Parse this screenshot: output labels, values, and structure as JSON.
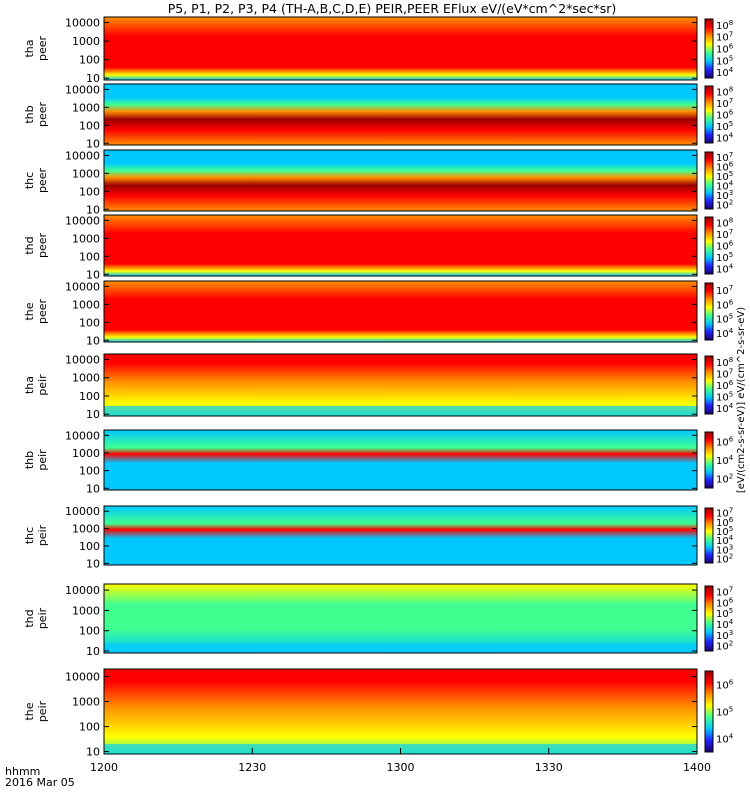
{
  "chart_data": {
    "type": "heatmap",
    "title": "P5, P1, P2, P3, P4 (TH-A,B,C,D,E) PEIR,PEER EFlux eV/(eV*cm^2*sec*sr)",
    "x_axis": {
      "label_line1": "hhmm",
      "label_line2": "2016 Mar 05",
      "ticks": [
        "1200",
        "1230",
        "1300",
        "1330",
        "1400"
      ],
      "range": [
        "12:00",
        "14:00"
      ]
    },
    "y_ticks": [
      "10000",
      "1000",
      "100",
      "10"
    ],
    "y_scale": "log",
    "y_range": [
      8,
      20000
    ],
    "panels": [
      {
        "probe": "tha",
        "species": "peer",
        "cbar_ticks": [
          "10^4",
          "10^5",
          "10^6",
          "10^7",
          "10^8"
        ],
        "pattern": "electron"
      },
      {
        "probe": "thb",
        "species": "peer",
        "cbar_ticks": [
          "10^4",
          "10^5",
          "10^6",
          "10^7",
          "10^8"
        ],
        "pattern": "electron_bands"
      },
      {
        "probe": "thc",
        "species": "peer",
        "cbar_ticks": [
          "10^2",
          "10^3",
          "10^4",
          "10^5",
          "10^6",
          "10^7"
        ],
        "pattern": "electron_bands"
      },
      {
        "probe": "thd",
        "species": "peer",
        "cbar_ticks": [
          "10^4",
          "10^5",
          "10^6",
          "10^7",
          "10^8"
        ],
        "pattern": "electron"
      },
      {
        "probe": "the",
        "species": "peer",
        "cbar_ticks": [
          "10^4",
          "10^5",
          "10^6",
          "10^7"
        ],
        "pattern": "electron"
      },
      {
        "probe": "tha",
        "species": "peir",
        "cbar_ticks": [
          "10^4",
          "10^5",
          "10^6",
          "10^7",
          "10^8"
        ],
        "pattern": "ion"
      },
      {
        "probe": "thb",
        "species": "peir",
        "cbar_ticks": [
          "10^2",
          "10^4",
          "10^6"
        ],
        "pattern": "ion_band"
      },
      {
        "probe": "thc",
        "species": "peir",
        "cbar_ticks": [
          "10^2",
          "10^3",
          "10^4",
          "10^5",
          "10^6",
          "10^7"
        ],
        "pattern": "ion_band"
      },
      {
        "probe": "thd",
        "species": "peir",
        "cbar_ticks": [
          "10^2",
          "10^3",
          "10^4",
          "10^5",
          "10^6",
          "10^7"
        ],
        "pattern": "ion_green"
      },
      {
        "probe": "the",
        "species": "peir",
        "cbar_ticks": [
          "10^4",
          "10^5",
          "10^6"
        ],
        "pattern": "ion"
      }
    ],
    "colorbar_label_electron": "eV/(cm^2-s-sr-eV)",
    "colorbar_label_ion": "[eV/(cm2-s-sr-eV)]",
    "colormap": [
      "#1a0070",
      "#2020ff",
      "#00c8ff",
      "#40ff90",
      "#ffff00",
      "#ff9000",
      "#ff0000",
      "#9a0000"
    ]
  }
}
